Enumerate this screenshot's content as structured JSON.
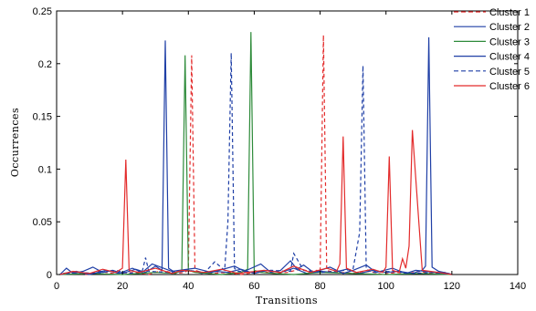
{
  "chart_data": {
    "type": "line",
    "title": "",
    "xlabel": "Transitions",
    "ylabel": "Occurrences",
    "xlim": [
      0,
      140
    ],
    "ylim": [
      0,
      0.25
    ],
    "xticks": [
      0,
      20,
      40,
      60,
      80,
      100,
      120,
      140
    ],
    "yticks": [
      0,
      0.05,
      0.1,
      0.15,
      0.2,
      0.25
    ],
    "ytick_labels": [
      "0",
      "0.05",
      "0.1",
      "0.15",
      "0.2",
      "0.25"
    ],
    "grid": false,
    "legend_position": "top-right",
    "series": [
      {
        "name": "Cluster 1",
        "color": "#e32b2b",
        "dash": "dashed",
        "x": [
          1,
          5,
          9,
          13,
          17,
          24,
          28,
          32,
          36,
          39,
          40,
          41,
          42,
          43,
          46,
          52,
          56,
          62,
          66,
          70,
          74,
          77,
          79,
          80,
          81,
          82,
          83,
          86,
          91,
          95,
          99,
          103,
          107,
          110,
          114,
          118,
          120
        ],
        "y": [
          0,
          0.002,
          0,
          0.003,
          0.001,
          0.002,
          0,
          0.004,
          0.001,
          0.002,
          0.005,
          0.208,
          0.004,
          0.003,
          0.001,
          0.002,
          0,
          0.003,
          0.001,
          0.002,
          0.005,
          0.003,
          0.004,
          0.002,
          0.227,
          0.004,
          0.003,
          0.002,
          0.001,
          0.003,
          0,
          0.002,
          0.001,
          0.003,
          0.001,
          0.002,
          0
        ]
      },
      {
        "name": "Cluster 2",
        "color": "#1f3fa6",
        "dash": "solid",
        "x": [
          1,
          3,
          5,
          8,
          11,
          14,
          17,
          20,
          24,
          27,
          30,
          32,
          33,
          34,
          36,
          40,
          44,
          48,
          52,
          56,
          60,
          64,
          68,
          72,
          76,
          80,
          84,
          88,
          92,
          96,
          100,
          104,
          108,
          111,
          112,
          113,
          114,
          116,
          119,
          120
        ],
        "y": [
          0,
          0.006,
          0.001,
          0.003,
          0.007,
          0.002,
          0.004,
          0.001,
          0.005,
          0.002,
          0.008,
          0.004,
          0.222,
          0.006,
          0.002,
          0.004,
          0.001,
          0.003,
          0.002,
          0.005,
          0.001,
          0.004,
          0.002,
          0.006,
          0.001,
          0.003,
          0.002,
          0.005,
          0.001,
          0.004,
          0.002,
          0.003,
          0.001,
          0.004,
          0.008,
          0.225,
          0.007,
          0.003,
          0.001,
          0
        ]
      },
      {
        "name": "Cluster 3",
        "color": "#2e8b3a",
        "dash": "solid",
        "x": [
          1,
          10,
          20,
          30,
          36,
          38,
          39,
          40,
          42,
          46,
          50,
          56,
          58,
          59,
          60,
          62,
          66,
          72,
          80,
          90,
          100,
          110,
          120
        ],
        "y": [
          0,
          0.001,
          0,
          0.002,
          0.001,
          0.004,
          0.208,
          0.004,
          0.002,
          0.001,
          0,
          0.002,
          0.005,
          0.23,
          0.004,
          0.002,
          0.001,
          0,
          0.002,
          0.001,
          0,
          0.001,
          0
        ]
      },
      {
        "name": "Cluster 4",
        "color": "#1f3fa6",
        "dash": "solid",
        "x": [
          2,
          6,
          10,
          15,
          19,
          23,
          26,
          29,
          35,
          42,
          47,
          54,
          57,
          62,
          65,
          68,
          71,
          73,
          75,
          78,
          83,
          87,
          90,
          94,
          97,
          102,
          106,
          109,
          115,
          118
        ],
        "y": [
          0.001,
          0.003,
          0,
          0.004,
          0.001,
          0.006,
          0.002,
          0.01,
          0.003,
          0.006,
          0.002,
          0.008,
          0.003,
          0.01,
          0.002,
          0.004,
          0.013,
          0.005,
          0.009,
          0.002,
          0.007,
          0.001,
          0.004,
          0.009,
          0.002,
          0.006,
          0.001,
          0.004,
          0.002,
          0.001
        ]
      },
      {
        "name": "Cluster 5",
        "color": "#1f3fa6",
        "dash": "dashed",
        "x": [
          1,
          7,
          12,
          18,
          22,
          26,
          27,
          28,
          34,
          40,
          45,
          48,
          51,
          52,
          53,
          54,
          55,
          60,
          65,
          71,
          72,
          75,
          80,
          85,
          90,
          92,
          93,
          94,
          96,
          102,
          108,
          114,
          120
        ],
        "y": [
          0,
          0.002,
          0.001,
          0.004,
          0.001,
          0.003,
          0.016,
          0.003,
          0.002,
          0.004,
          0.002,
          0.012,
          0.004,
          0.05,
          0.21,
          0.006,
          0.003,
          0.002,
          0.004,
          0.003,
          0.02,
          0.004,
          0.002,
          0.003,
          0.005,
          0.04,
          0.198,
          0.005,
          0.002,
          0.003,
          0.001,
          0.002,
          0
        ]
      },
      {
        "name": "Cluster 6",
        "color": "#e32b2b",
        "dash": "solid",
        "x": [
          1,
          5,
          10,
          14,
          18,
          20,
          21,
          22,
          25,
          30,
          35,
          38,
          45,
          50,
          55,
          63,
          68,
          72,
          77,
          82,
          85,
          86,
          87,
          88,
          91,
          96,
          99,
          100,
          101,
          102,
          104,
          105,
          106,
          107,
          108,
          111,
          116,
          120
        ],
        "y": [
          0,
          0.003,
          0.001,
          0.005,
          0.002,
          0.006,
          0.109,
          0.004,
          0.002,
          0.006,
          0.001,
          0.004,
          0.002,
          0.005,
          0.001,
          0.004,
          0.002,
          0.008,
          0.002,
          0.006,
          0.003,
          0.01,
          0.131,
          0.006,
          0.002,
          0.005,
          0.002,
          0.007,
          0.112,
          0.004,
          0.002,
          0.015,
          0.006,
          0.027,
          0.137,
          0.004,
          0.002,
          0
        ]
      }
    ]
  }
}
